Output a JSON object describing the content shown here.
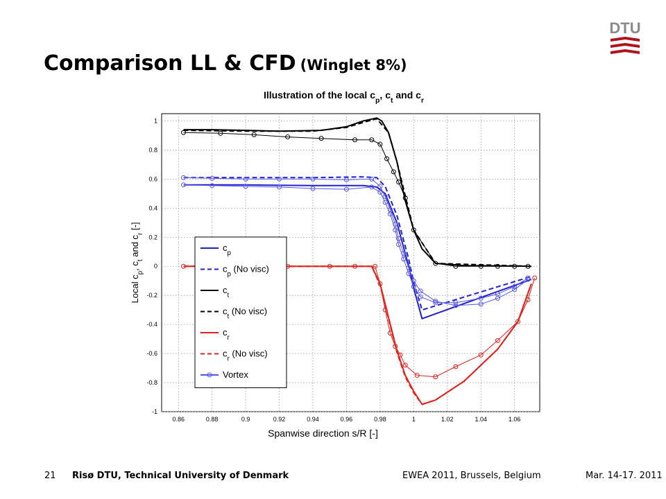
{
  "slide": {
    "title": "Comparison LL & CFD",
    "subtitle": "(Winglet 8%)",
    "logo_text": "DTU",
    "logo_color": "#b0111a",
    "footer": {
      "page": "21",
      "organization": "Risø DTU, Technical University of Denmark",
      "event": "EWEA 2011, Brussels, Belgium",
      "date": "Mar. 14-17. 2011"
    }
  },
  "chart_data": {
    "type": "line",
    "title": "Illustration of the local cp, ct and cr",
    "xlabel": "Spanwise direction s/R [-]",
    "ylabel": "Local cp, ct and cr [-]",
    "xlim": [
      0.85,
      1.075
    ],
    "ylim": [
      -1,
      1.05
    ],
    "xticks": [
      "0.86",
      "0.88",
      "0.9",
      "0.92",
      "0.94",
      "0.96",
      "0.98",
      "1",
      "1.02",
      "1.04",
      "1.06"
    ],
    "yticks": [
      "1",
      "0.8",
      "0.6",
      "0.4",
      "0.2",
      "0",
      "-0.2",
      "-0.4",
      "-0.6",
      "-0.8",
      "-1"
    ],
    "grid": true,
    "legend_placement": "bottom-left",
    "series": [
      {
        "key": "cp",
        "name": "cp",
        "color": "#1f1fd0",
        "style": "solid",
        "width": 2,
        "x": [
          0.863,
          0.9,
          0.94,
          0.97,
          0.978,
          0.983,
          0.99,
          0.997,
          1.0,
          1.005,
          1.07
        ],
        "y": [
          0.56,
          0.56,
          0.555,
          0.555,
          0.545,
          0.5,
          0.3,
          0.0,
          -0.15,
          -0.36,
          -0.09
        ]
      },
      {
        "key": "cp_nv",
        "name": "cp (No visc)",
        "color": "#1f1fd0",
        "style": "dash",
        "width": 2,
        "x": [
          0.863,
          0.9,
          0.94,
          0.97,
          0.978,
          0.983,
          0.99,
          0.997,
          1.0,
          1.005,
          1.07
        ],
        "y": [
          0.61,
          0.61,
          0.61,
          0.615,
          0.61,
          0.55,
          0.35,
          0.05,
          -0.11,
          -0.3,
          -0.07
        ]
      },
      {
        "key": "ct",
        "name": "ct",
        "color": "#000000",
        "style": "solid",
        "width": 2,
        "x": [
          0.863,
          0.88,
          0.9,
          0.92,
          0.945,
          0.96,
          0.97,
          0.978,
          0.981,
          0.985,
          0.99,
          0.995,
          1.0,
          1.005,
          1.013,
          1.03,
          1.07
        ],
        "y": [
          0.94,
          0.94,
          0.935,
          0.93,
          0.935,
          0.96,
          1.0,
          1.02,
          1.0,
          0.92,
          0.72,
          0.45,
          0.25,
          0.12,
          0.02,
          0.005,
          0.0
        ]
      },
      {
        "key": "ct_nv",
        "name": "ct (No visc)",
        "color": "#000000",
        "style": "dash",
        "width": 2,
        "x": [
          0.863,
          0.9,
          0.94,
          0.96,
          0.97,
          0.978,
          0.985,
          0.99,
          1.0,
          1.013,
          1.07
        ],
        "y": [
          0.935,
          0.93,
          0.93,
          0.955,
          0.99,
          1.015,
          0.92,
          0.72,
          0.25,
          0.02,
          0.0
        ]
      },
      {
        "key": "cr",
        "name": "cr",
        "color": "#e3201b",
        "style": "solid",
        "width": 2,
        "x": [
          0.863,
          0.975,
          0.98,
          0.985,
          0.99,
          0.995,
          1.0,
          1.005,
          1.013,
          1.03,
          1.05,
          1.062,
          1.07
        ],
        "y": [
          0.0,
          0.0,
          -0.12,
          -0.35,
          -0.58,
          -0.75,
          -0.86,
          -0.95,
          -0.92,
          -0.79,
          -0.57,
          -0.38,
          -0.12
        ]
      },
      {
        "key": "cr_nv",
        "name": "cr (No visc)",
        "color": "#e3201b",
        "style": "dash",
        "width": 2,
        "x": [
          0.863,
          0.975,
          0.98,
          0.985,
          0.99,
          0.995,
          1.0,
          1.005,
          1.013,
          1.03,
          1.05,
          1.062,
          1.07
        ],
        "y": [
          0.0,
          0.0,
          -0.13,
          -0.36,
          -0.59,
          -0.76,
          -0.87,
          -0.95,
          -0.92,
          -0.79,
          -0.57,
          -0.38,
          -0.12
        ]
      },
      {
        "key": "vortex_cp",
        "name": "Vortex",
        "color": "#5555ee",
        "style": "solid",
        "width": 1,
        "markers": true,
        "x": [
          0.863,
          0.88,
          0.9,
          0.92,
          0.94,
          0.96,
          0.975,
          0.98,
          0.983,
          0.986,
          0.989,
          0.991,
          0.994,
          0.997,
          1.0,
          1.004,
          1.013,
          1.025,
          1.04,
          1.05,
          1.06,
          1.068
        ],
        "y": [
          0.56,
          0.555,
          0.55,
          0.545,
          0.535,
          0.53,
          0.545,
          0.51,
          0.44,
          0.36,
          0.25,
          0.15,
          0.05,
          -0.05,
          -0.14,
          -0.21,
          -0.25,
          -0.25,
          -0.22,
          -0.19,
          -0.14,
          -0.08
        ]
      },
      {
        "key": "vortex_cp2",
        "name": "",
        "color": "#5555ee",
        "style": "solid",
        "width": 1,
        "markers": true,
        "x": [
          0.863,
          0.88,
          0.9,
          0.92,
          0.94,
          0.96,
          0.975,
          0.98,
          0.983,
          0.986,
          0.989,
          0.991,
          0.994,
          0.997,
          1.0,
          1.004,
          1.013,
          1.025,
          1.04,
          1.05,
          1.06,
          1.068
        ],
        "y": [
          0.61,
          0.605,
          0.6,
          0.6,
          0.6,
          0.595,
          0.6,
          0.55,
          0.48,
          0.39,
          0.29,
          0.19,
          0.09,
          -0.01,
          -0.1,
          -0.17,
          -0.24,
          -0.27,
          -0.26,
          -0.22,
          -0.16,
          -0.09
        ]
      },
      {
        "key": "vortex_ct",
        "name": "",
        "color": "#000000",
        "style": "solid",
        "width": 1,
        "markers": true,
        "x": [
          0.863,
          0.885,
          0.905,
          0.925,
          0.945,
          0.965,
          0.975,
          0.98,
          0.984,
          0.988,
          0.991,
          0.995,
          1.0,
          1.013,
          1.025,
          1.04,
          1.05,
          1.06,
          1.068
        ],
        "y": [
          0.92,
          0.915,
          0.905,
          0.89,
          0.88,
          0.87,
          0.87,
          0.84,
          0.74,
          0.65,
          0.58,
          0.47,
          0.25,
          0.02,
          0.0,
          0.0,
          0.0,
          0.0,
          0.0
        ]
      },
      {
        "key": "vortex_cr",
        "name": "",
        "color": "#e3201b",
        "style": "solid",
        "width": 1,
        "markers": true,
        "x": [
          0.863,
          0.875,
          0.9,
          0.925,
          0.95,
          0.965,
          0.977,
          0.98,
          0.983,
          0.986,
          0.989,
          0.992,
          0.995,
          1.002,
          1.013,
          1.025,
          1.04,
          1.05,
          1.062,
          1.068,
          1.072
        ],
        "y": [
          0.0,
          0.0,
          0.0,
          0.0,
          0.0,
          0.0,
          0.0,
          -0.12,
          -0.3,
          -0.46,
          -0.55,
          -0.61,
          -0.68,
          -0.75,
          -0.76,
          -0.69,
          -0.61,
          -0.51,
          -0.38,
          -0.23,
          -0.08
        ]
      }
    ],
    "legend": [
      {
        "label": "cp",
        "color": "#1f1fd0",
        "style": "solid",
        "marker": false
      },
      {
        "label": "cp (No visc)",
        "color": "#1f1fd0",
        "style": "dash",
        "marker": false
      },
      {
        "label": "ct",
        "color": "#000000",
        "style": "solid",
        "marker": false
      },
      {
        "label": "ct (No visc)",
        "color": "#000000",
        "style": "dash",
        "marker": false
      },
      {
        "label": "cr",
        "color": "#e3201b",
        "style": "solid",
        "marker": false
      },
      {
        "label": "cr (No visc)",
        "color": "#e3201b",
        "style": "dash",
        "marker": false
      },
      {
        "label": "Vortex",
        "color": "#5555ee",
        "style": "solid",
        "marker": true
      }
    ]
  }
}
